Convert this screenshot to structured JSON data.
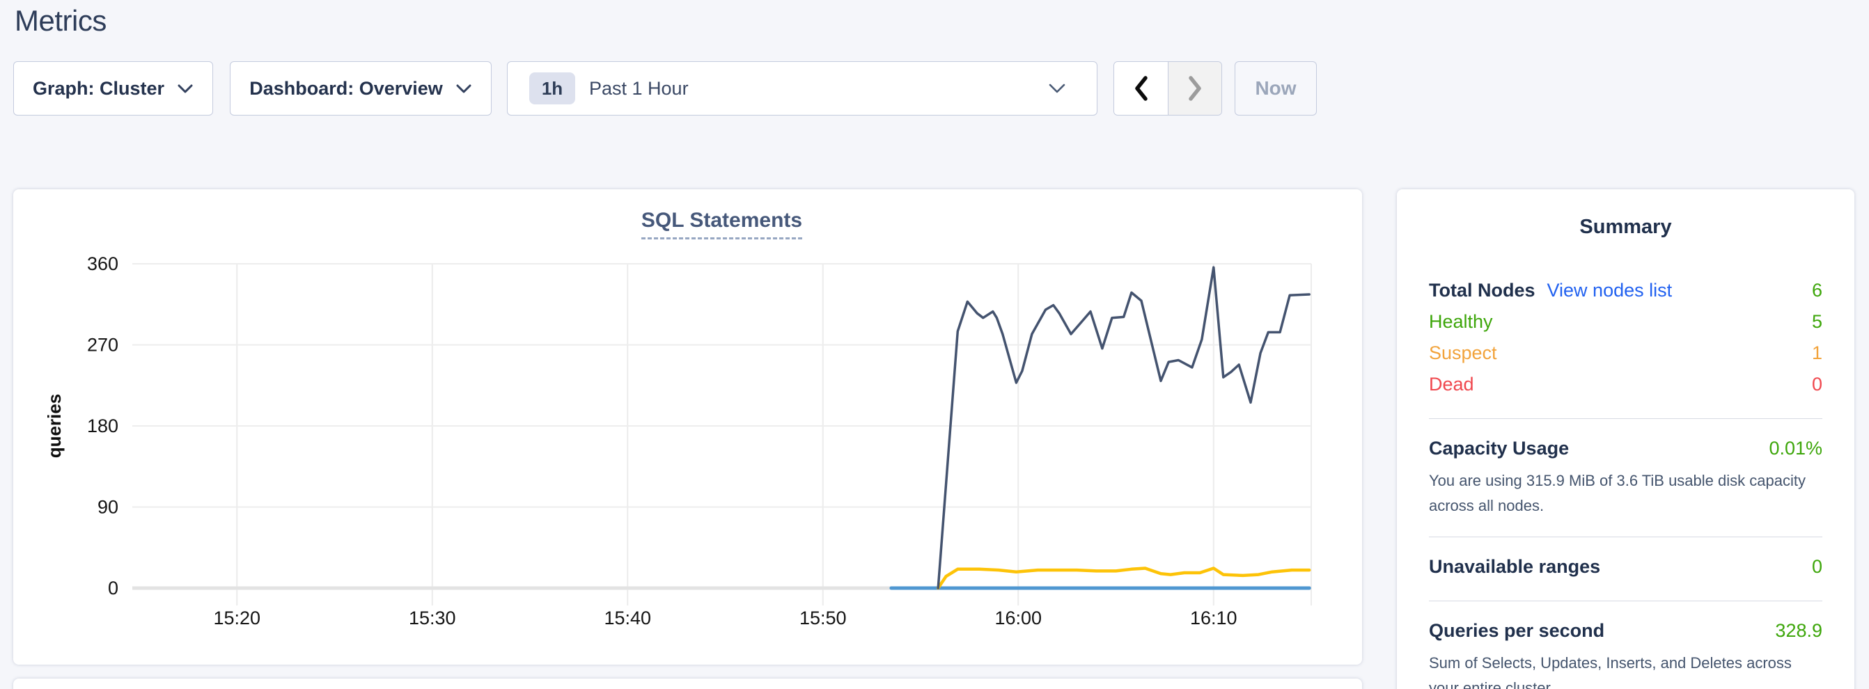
{
  "page_title": "Metrics",
  "toolbar": {
    "graph_dropdown": {
      "label": "Graph: Cluster"
    },
    "dashboard_dropdown": {
      "label": "Dashboard: Overview"
    },
    "time_selector": {
      "badge": "1h",
      "label": "Past 1 Hour"
    },
    "now_button": {
      "label": "Now"
    }
  },
  "chart_data": {
    "type": "line",
    "title": "SQL Statements",
    "ylabel": "queries",
    "ylim": [
      0,
      360
    ],
    "y_ticks": [
      0,
      90,
      180,
      270,
      360
    ],
    "x_start_time": "15:15",
    "xlim_minutes": [
      0,
      60
    ],
    "x_ticks": [
      {
        "minute": 5,
        "label": "15:20"
      },
      {
        "minute": 15,
        "label": "15:30"
      },
      {
        "minute": 25,
        "label": "15:40"
      },
      {
        "minute": 35,
        "label": "15:50"
      },
      {
        "minute": 45,
        "label": "16:00"
      },
      {
        "minute": 55,
        "label": "16:10"
      }
    ],
    "grid": true,
    "legend": "none",
    "series": [
      {
        "name": "light-blue-series",
        "color": "#4f97d1",
        "width": 5,
        "points": [
          [
            38.5,
            0
          ],
          [
            59.9,
            0
          ]
        ]
      },
      {
        "name": "yellow-series",
        "color": "#fdc308",
        "width": 4.5,
        "points": [
          [
            40.9,
            0
          ],
          [
            41.3,
            13
          ],
          [
            41.9,
            21
          ],
          [
            43,
            21
          ],
          [
            44,
            20
          ],
          [
            44.9,
            18
          ],
          [
            46,
            20
          ],
          [
            47,
            20
          ],
          [
            48,
            20
          ],
          [
            49,
            19
          ],
          [
            50,
            19
          ],
          [
            50.8,
            21
          ],
          [
            51.5,
            22
          ],
          [
            52.3,
            16
          ],
          [
            52.8,
            15
          ],
          [
            53.5,
            17
          ],
          [
            54.3,
            17
          ],
          [
            55,
            22
          ],
          [
            55.5,
            15
          ],
          [
            56.5,
            14
          ],
          [
            57.3,
            15
          ],
          [
            58,
            18
          ],
          [
            59,
            20
          ],
          [
            59.9,
            20
          ]
        ]
      },
      {
        "name": "dark-blue-series",
        "color": "#44536f",
        "width": 3.5,
        "points": [
          [
            40.9,
            0
          ],
          [
            41.6,
            200
          ],
          [
            41.9,
            285
          ],
          [
            42.4,
            318
          ],
          [
            42.9,
            305
          ],
          [
            43.2,
            300
          ],
          [
            43.7,
            307
          ],
          [
            43.9,
            300
          ],
          [
            44.2,
            282
          ],
          [
            44.9,
            228
          ],
          [
            45.2,
            241
          ],
          [
            45.7,
            282
          ],
          [
            46.4,
            309
          ],
          [
            46.8,
            314
          ],
          [
            47.1,
            305
          ],
          [
            47.7,
            282
          ],
          [
            48.3,
            297
          ],
          [
            48.7,
            307
          ],
          [
            49.3,
            266
          ],
          [
            49.8,
            300
          ],
          [
            50.4,
            301
          ],
          [
            50.8,
            328
          ],
          [
            51.3,
            319
          ],
          [
            52.3,
            230
          ],
          [
            52.7,
            251
          ],
          [
            53.2,
            253
          ],
          [
            53.9,
            245
          ],
          [
            54.4,
            276
          ],
          [
            55,
            356
          ],
          [
            55.5,
            234
          ],
          [
            55.9,
            240
          ],
          [
            56.3,
            248
          ],
          [
            56.9,
            206
          ],
          [
            57.4,
            261
          ],
          [
            57.8,
            284
          ],
          [
            58.4,
            284
          ],
          [
            58.9,
            325
          ],
          [
            59.9,
            326
          ]
        ]
      }
    ]
  },
  "summary": {
    "title": "Summary",
    "nodes": {
      "total_label": "Total Nodes",
      "view_link": "View nodes list",
      "total_value": "6",
      "rows": [
        {
          "label": "Healthy",
          "value": "5",
          "color": "#3da60a"
        },
        {
          "label": "Suspect",
          "value": "1",
          "color": "#f2a33b"
        },
        {
          "label": "Dead",
          "value": "0",
          "color": "#f0484e"
        }
      ]
    },
    "capacity": {
      "label": "Capacity Usage",
      "value": "0.01%",
      "description": "You are using 315.9 MiB of 3.6 TiB usable disk capacity across all nodes."
    },
    "unavailable": {
      "label": "Unavailable ranges",
      "value": "0"
    },
    "qps": {
      "label": "Queries per second",
      "value": "328.9",
      "description": "Sum of Selects, Updates, Inserts, and Deletes across your entire cluster."
    }
  },
  "colors": {
    "green": "#3da60a",
    "orange": "#f2a33b",
    "red": "#f0484e",
    "link_blue": "#2161f0",
    "heading": "#20304c"
  }
}
